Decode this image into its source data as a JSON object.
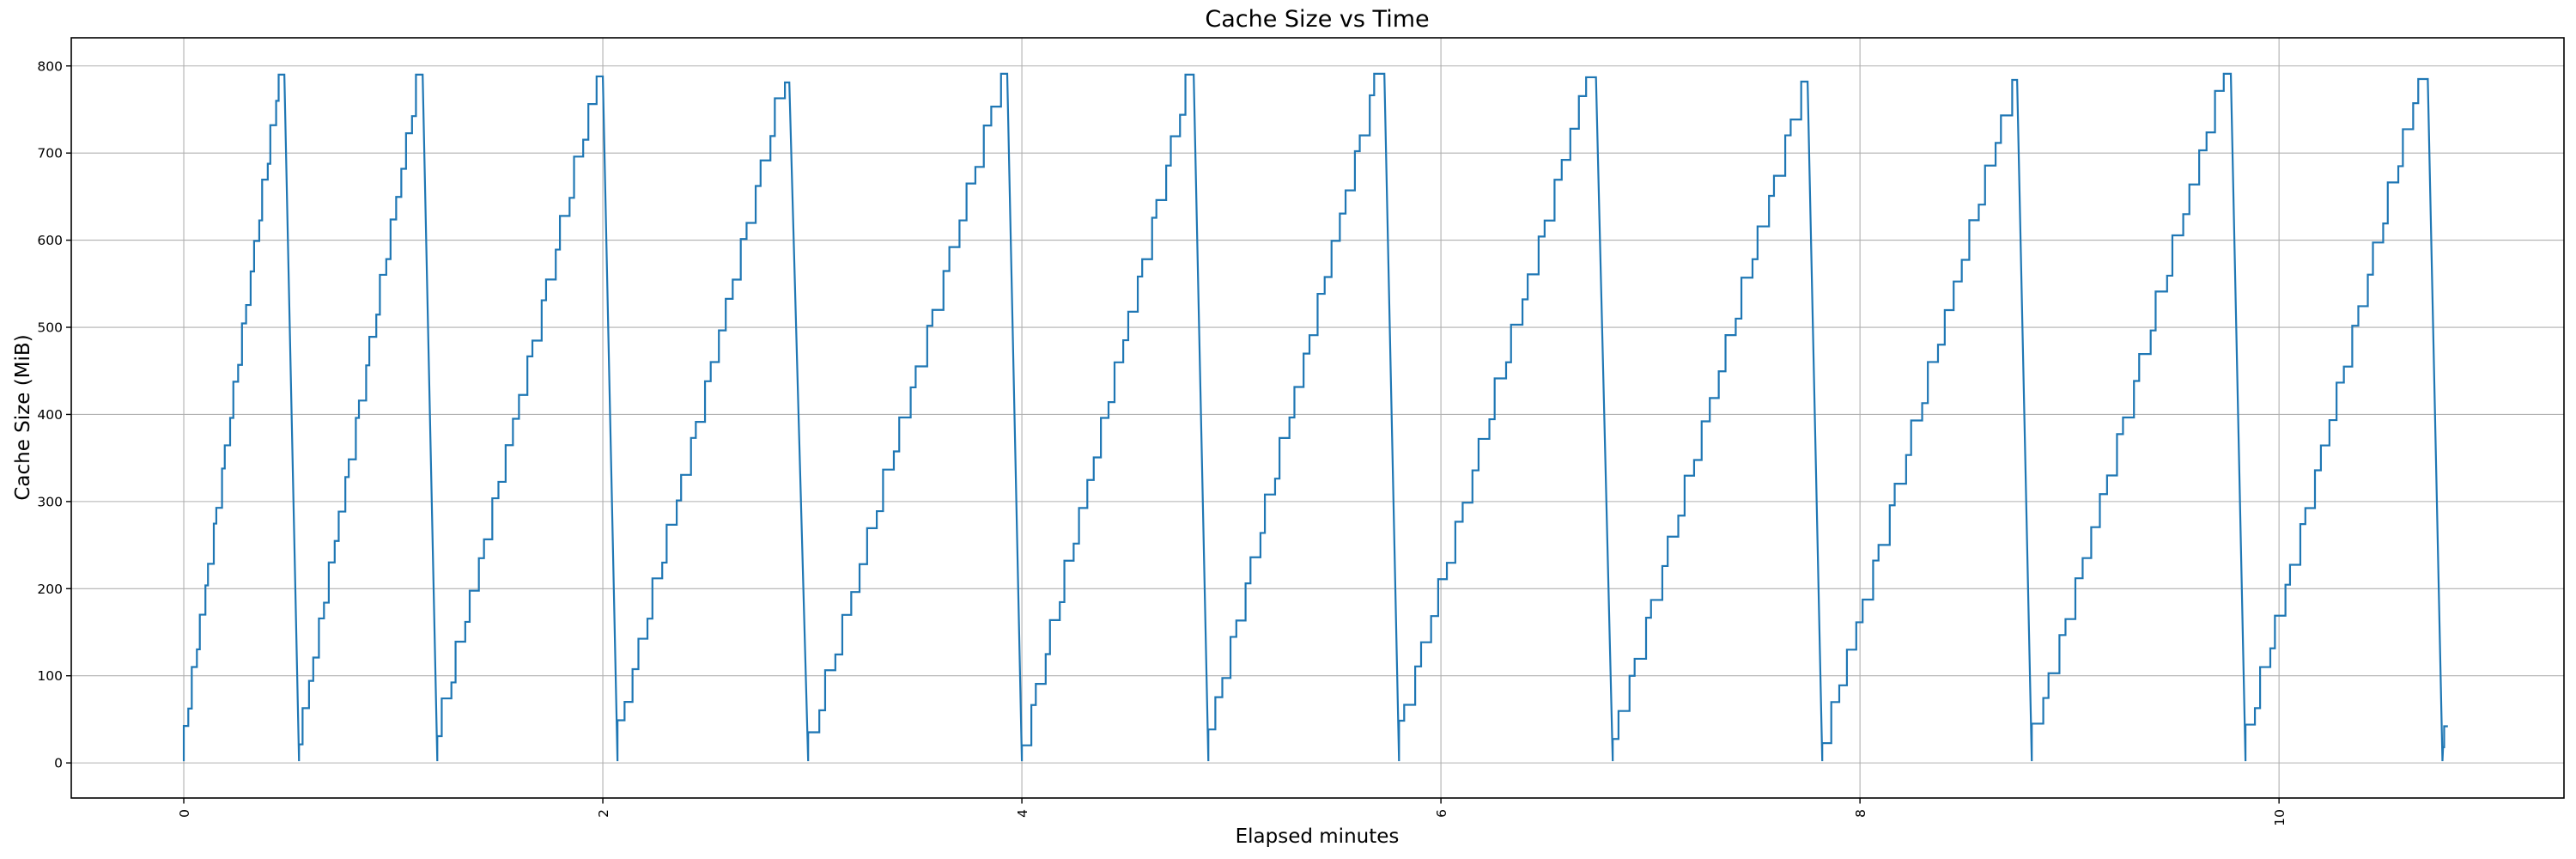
{
  "figure": {
    "background_color": "#ffffff"
  },
  "chart_data": {
    "type": "line",
    "title": "Cache Size vs Time",
    "xlabel": "Elapsed minutes",
    "ylabel": "Cache Size (MiB)",
    "line_color": "#1f77b4",
    "grid_color": "#b0b0b0",
    "spine_color": "#000000",
    "grid": true,
    "xlim": [
      -0.537,
      11.36
    ],
    "ylim": [
      -40.3,
      832.3
    ],
    "x_ticks": [
      0,
      2,
      4,
      6,
      8,
      10
    ],
    "x_tick_labels": [
      "0",
      "2",
      "4",
      "6",
      "8",
      "10"
    ],
    "x_tick_rotation_deg": 90,
    "y_ticks": [
      0,
      100,
      200,
      300,
      400,
      500,
      600,
      700,
      800
    ],
    "y_tick_labels": [
      "0",
      "100",
      "200",
      "300",
      "400",
      "500",
      "600",
      "700",
      "800"
    ],
    "pattern": "stepped sawtooth: cache grows in ~33 MiB staircase increments to ~790 MiB, then is flushed almost instantly back to ~0 and immediately begins growing again",
    "bottom_value": 2,
    "step_mib": 33,
    "cycles": [
      {
        "start_x": 0.0,
        "peak_x": 0.48,
        "peak_y": 790
      },
      {
        "start_x": 0.55,
        "peak_x": 1.14,
        "peak_y": 790
      },
      {
        "start_x": 1.21,
        "peak_x": 2.0,
        "peak_y": 788
      },
      {
        "start_x": 2.07,
        "peak_x": 2.89,
        "peak_y": 781
      },
      {
        "start_x": 2.98,
        "peak_x": 3.93,
        "peak_y": 791
      },
      {
        "start_x": 4.0,
        "peak_x": 4.82,
        "peak_y": 790
      },
      {
        "start_x": 4.89,
        "peak_x": 5.73,
        "peak_y": 791
      },
      {
        "start_x": 5.8,
        "peak_x": 6.74,
        "peak_y": 787
      },
      {
        "start_x": 6.82,
        "peak_x": 7.75,
        "peak_y": 782
      },
      {
        "start_x": 7.82,
        "peak_x": 8.75,
        "peak_y": 784
      },
      {
        "start_x": 8.82,
        "peak_x": 9.77,
        "peak_y": 791
      },
      {
        "start_x": 9.84,
        "peak_x": 10.71,
        "peak_y": 785
      }
    ],
    "final_drop_end_x": 10.78,
    "tail_points": [
      [
        10.78,
        2
      ],
      [
        10.783,
        18
      ],
      [
        10.788,
        18
      ],
      [
        10.788,
        42
      ],
      [
        10.806,
        42
      ]
    ],
    "x_range_of_data": [
      0,
      10.806
    ],
    "y_range_of_data": [
      0,
      791
    ]
  }
}
